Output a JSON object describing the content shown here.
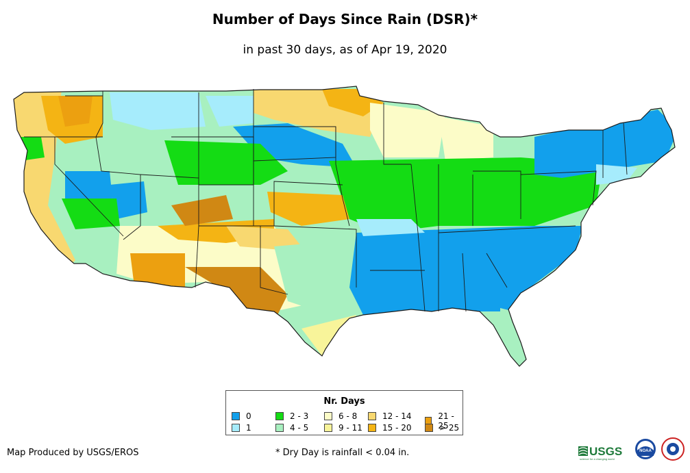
{
  "title": "Number of Days Since Rain (DSR)*",
  "subtitle": "in past 30 days, as of Apr 19, 2020",
  "legend": {
    "title": "Nr. Days",
    "items": [
      {
        "label": "0",
        "color": "#12a0ec"
      },
      {
        "label": "1",
        "color": "#a6ecfc"
      },
      {
        "label": "2 - 3",
        "color": "#14dc14"
      },
      {
        "label": "4 - 5",
        "color": "#a8f0c0"
      },
      {
        "label": "6 - 8",
        "color": "#fcfcc8"
      },
      {
        "label": "9 - 11",
        "color": "#f8f49a"
      },
      {
        "label": "12 - 14",
        "color": "#f8d870"
      },
      {
        "label": "15 - 20",
        "color": "#f4b414"
      },
      {
        "label": "21 - 25",
        "color": "#eca010"
      },
      {
        "label": "> 25",
        "color": "#d08814"
      }
    ]
  },
  "credit": "Map Produced by USGS/EROS",
  "footnote": "* Dry Day is rainfall < 0.04 in.",
  "logos": {
    "usgs_text": "USGS",
    "usgs_tagline": "science for a changing world",
    "noaa_text": "NOAA"
  }
}
